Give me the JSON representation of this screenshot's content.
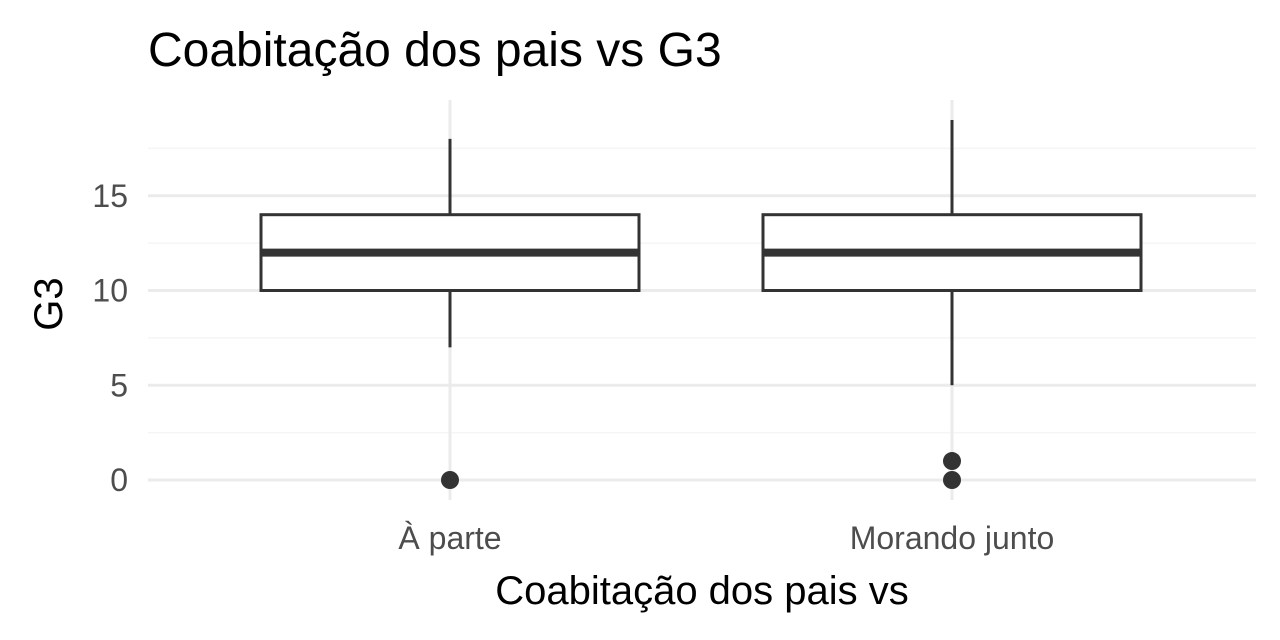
{
  "chart_data": {
    "type": "boxplot",
    "title": "Coabitação dos pais vs  G3",
    "xlabel": "Coabitação dos pais vs",
    "ylabel": "G3",
    "categories": [
      "À parte",
      "Morando junto"
    ],
    "boxes": [
      {
        "category": "À parte",
        "min": 7,
        "q1": 10,
        "median": 12,
        "q3": 14,
        "max": 18,
        "outliers": [
          0
        ]
      },
      {
        "category": "Morando junto",
        "min": 5,
        "q1": 10,
        "median": 12,
        "q3": 14,
        "max": 19,
        "outliers": [
          0,
          1
        ]
      }
    ],
    "yticks": [
      0,
      5,
      10,
      15
    ],
    "ylim": [
      -1,
      20
    ],
    "grid": true,
    "legend": "none",
    "colors": {
      "box_stroke": "#333333",
      "box_fill": "#ffffff",
      "grid_major": "#ebebeb",
      "grid_minor": "#f5f5f5",
      "tick_label": "#4d4d4d",
      "title": "#000000"
    }
  }
}
